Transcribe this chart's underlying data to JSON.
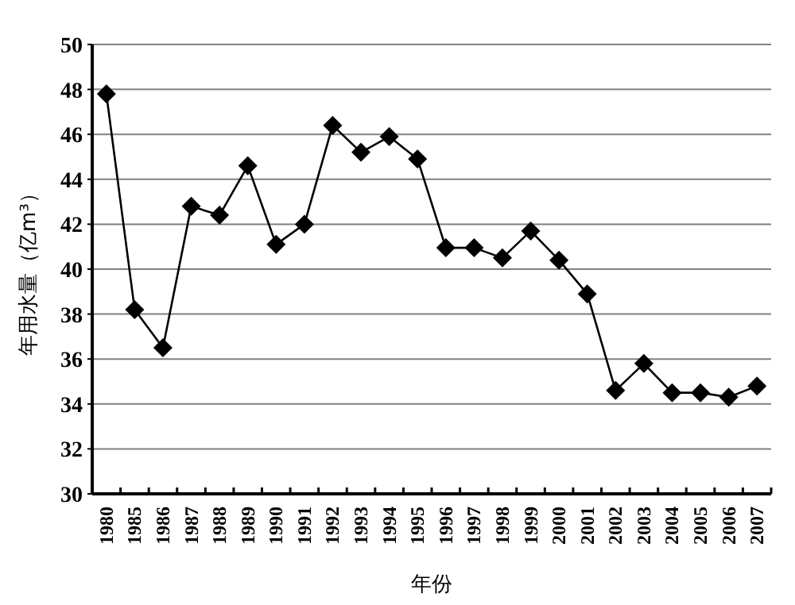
{
  "chart_data": {
    "type": "line",
    "xlabel": "年份",
    "ylabel": "年用水量（亿m³）",
    "categories": [
      "1980",
      "1985",
      "1986",
      "1987",
      "1988",
      "1989",
      "1990",
      "1991",
      "1992",
      "1993",
      "1994",
      "1995",
      "1996",
      "1997",
      "1998",
      "1999",
      "2000",
      "2001",
      "2002",
      "2003",
      "2004",
      "2005",
      "2006",
      "2007"
    ],
    "values": [
      47.8,
      38.2,
      36.5,
      42.8,
      42.4,
      44.6,
      41.1,
      42.0,
      46.4,
      45.2,
      45.9,
      44.9,
      40.95,
      40.95,
      40.5,
      41.7,
      40.4,
      38.9,
      34.6,
      35.8,
      34.5,
      34.5,
      34.3,
      34.8
    ],
    "color": "#000000",
    "ylim": [
      30,
      50
    ],
    "yticks": [
      30,
      32,
      34,
      36,
      38,
      40,
      42,
      44,
      46,
      48,
      50
    ],
    "grid": "y",
    "marker": "diamond",
    "line_style": "solid"
  }
}
